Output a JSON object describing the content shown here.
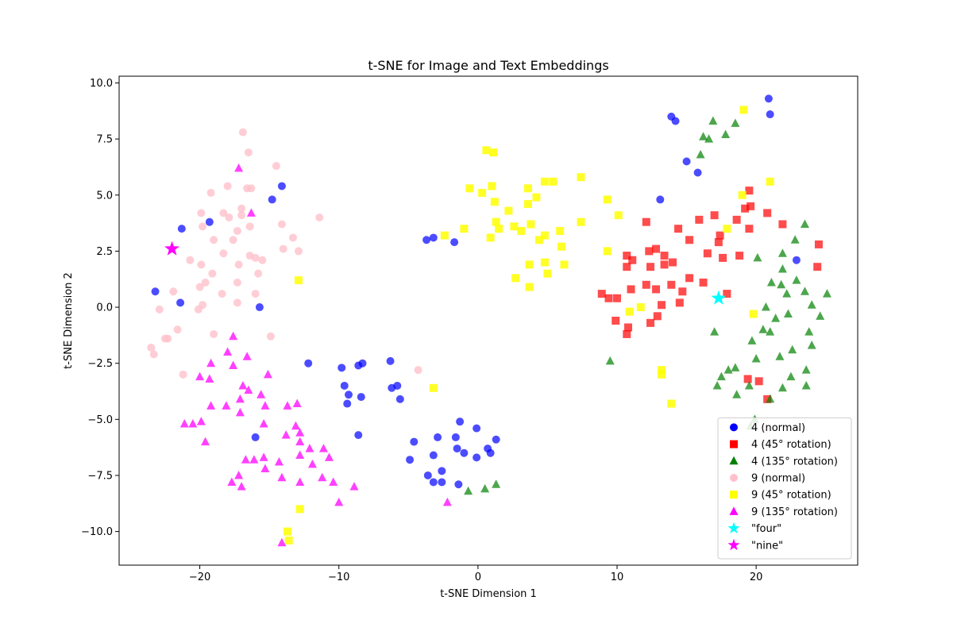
{
  "chart_data": {
    "type": "scatter",
    "title": "t-SNE for Image and Text Embeddings",
    "xlabel": "t-SNE Dimension 1",
    "ylabel": "t-SNE Dimension 2",
    "xlim": [
      -25.8,
      27.3
    ],
    "ylim": [
      -11.5,
      10.3
    ],
    "xticks": [
      -20,
      -10,
      0,
      10,
      20
    ],
    "xtick_labels": [
      "−20",
      "−10",
      "0",
      "10",
      "20"
    ],
    "yticks": [
      -10,
      -7.5,
      -5,
      -2.5,
      0,
      2.5,
      5,
      7.5,
      10
    ],
    "ytick_labels": [
      "−10.0",
      "−7.5",
      "−5.0",
      "−2.5",
      "0.0",
      "2.5",
      "5.0",
      "7.5",
      "10.0"
    ],
    "grid": false,
    "legend_position": "lower-right",
    "series": [
      {
        "name": "4 (normal)",
        "marker": "circle",
        "color": "#0000ff",
        "alpha": 0.7,
        "points": [
          [
            -21.3,
            3.5
          ],
          [
            -19.3,
            3.8
          ],
          [
            -14.8,
            4.8
          ],
          [
            -14.1,
            5.4
          ],
          [
            -23.2,
            0.7
          ],
          [
            -21.4,
            0.2
          ],
          [
            -15.7,
            0.0
          ],
          [
            -3.7,
            3.0
          ],
          [
            -3.2,
            3.1
          ],
          [
            -1.7,
            2.9
          ],
          [
            -12.2,
            -2.5
          ],
          [
            -9.8,
            -2.7
          ],
          [
            -8.6,
            -2.6
          ],
          [
            -8.3,
            -2.5
          ],
          [
            -6.3,
            -2.4
          ],
          [
            -9.6,
            -3.5
          ],
          [
            -9.3,
            -3.9
          ],
          [
            -8.4,
            -4.0
          ],
          [
            -6.2,
            -3.6
          ],
          [
            -5.8,
            -3.5
          ],
          [
            -5.6,
            -4.1
          ],
          [
            -9.4,
            -4.3
          ],
          [
            -8.6,
            -5.7
          ],
          [
            -16.0,
            -5.8
          ],
          [
            -4.6,
            -6.0
          ],
          [
            -2.9,
            -5.8
          ],
          [
            -1.6,
            -5.8
          ],
          [
            -1.3,
            -5.1
          ],
          [
            -0.1,
            -5.4
          ],
          [
            1.3,
            -5.9
          ],
          [
            -1.5,
            -6.3
          ],
          [
            -1.0,
            -6.5
          ],
          [
            -3.2,
            -6.6
          ],
          [
            0.7,
            -6.3
          ],
          [
            -0.1,
            -6.7
          ],
          [
            0.9,
            -6.5
          ],
          [
            -4.9,
            -6.8
          ],
          [
            -3.6,
            -7.5
          ],
          [
            -2.6,
            -7.3
          ],
          [
            -3.2,
            -7.8
          ],
          [
            -2.6,
            -7.8
          ],
          [
            -1.4,
            -7.9
          ],
          [
            13.9,
            8.5
          ],
          [
            14.2,
            8.3
          ],
          [
            15.0,
            6.5
          ],
          [
            15.8,
            6.0
          ],
          [
            20.9,
            9.3
          ],
          [
            21.0,
            8.6
          ],
          [
            13.1,
            4.8
          ],
          [
            22.9,
            2.1
          ]
        ]
      },
      {
        "name": "4 (45° rotation)",
        "marker": "square",
        "color": "#ff0000",
        "alpha": 0.7,
        "points": [
          [
            19.5,
            5.2
          ],
          [
            19.6,
            4.5
          ],
          [
            19.2,
            4.4
          ],
          [
            20.8,
            4.2
          ],
          [
            21.9,
            3.7
          ],
          [
            17.0,
            4.1
          ],
          [
            18.6,
            3.9
          ],
          [
            19.5,
            3.5
          ],
          [
            15.9,
            3.9
          ],
          [
            12.1,
            3.8
          ],
          [
            14.4,
            3.5
          ],
          [
            17.4,
            3.2
          ],
          [
            17.3,
            2.9
          ],
          [
            15.2,
            3.0
          ],
          [
            24.5,
            2.8
          ],
          [
            12.3,
            2.5
          ],
          [
            12.8,
            2.6
          ],
          [
            13.4,
            2.3
          ],
          [
            11.1,
            2.1
          ],
          [
            10.7,
            2.3
          ],
          [
            14.0,
            2.0
          ],
          [
            16.5,
            2.4
          ],
          [
            17.6,
            2.2
          ],
          [
            18.8,
            2.3
          ],
          [
            10.7,
            1.8
          ],
          [
            12.4,
            1.8
          ],
          [
            13.4,
            1.9
          ],
          [
            24.4,
            1.8
          ],
          [
            15.2,
            1.3
          ],
          [
            16.2,
            1.1
          ],
          [
            12.1,
            1.0
          ],
          [
            13.9,
            1.0
          ],
          [
            14.7,
            0.7
          ],
          [
            11.0,
            0.8
          ],
          [
            12.8,
            0.8
          ],
          [
            8.9,
            0.6
          ],
          [
            9.4,
            0.4
          ],
          [
            10.0,
            0.4
          ],
          [
            17.9,
            0.6
          ],
          [
            13.2,
            0.1
          ],
          [
            14.5,
            0.2
          ],
          [
            9.9,
            -0.6
          ],
          [
            12.9,
            -0.4
          ],
          [
            12.4,
            -0.7
          ],
          [
            10.8,
            -0.9
          ],
          [
            10.7,
            -1.2
          ],
          [
            19.4,
            -3.2
          ],
          [
            20.2,
            -3.3
          ],
          [
            20.8,
            -4.1
          ]
        ]
      },
      {
        "name": "4 (135° rotation)",
        "marker": "triangle",
        "color": "#008000",
        "alpha": 0.7,
        "points": [
          [
            16.9,
            8.3
          ],
          [
            18.5,
            8.2
          ],
          [
            17.8,
            7.7
          ],
          [
            16.2,
            7.6
          ],
          [
            16.6,
            7.5
          ],
          [
            16.0,
            6.8
          ],
          [
            23.5,
            3.7
          ],
          [
            22.8,
            3.0
          ],
          [
            21.9,
            2.4
          ],
          [
            20.1,
            2.2
          ],
          [
            21.9,
            1.7
          ],
          [
            22.9,
            1.2
          ],
          [
            21.1,
            1.1
          ],
          [
            21.8,
            1.0
          ],
          [
            22.2,
            0.6
          ],
          [
            23.5,
            0.7
          ],
          [
            25.1,
            0.6
          ],
          [
            24.0,
            0.1
          ],
          [
            24.6,
            -0.4
          ],
          [
            22.3,
            -0.3
          ],
          [
            21.4,
            -0.5
          ],
          [
            20.7,
            0.0
          ],
          [
            20.5,
            -1.0
          ],
          [
            21.0,
            -1.1
          ],
          [
            17.0,
            -1.1
          ],
          [
            23.8,
            -1.1
          ],
          [
            19.7,
            -1.5
          ],
          [
            24.0,
            -1.7
          ],
          [
            22.6,
            -1.9
          ],
          [
            20.0,
            -2.3
          ],
          [
            21.7,
            -2.2
          ],
          [
            9.5,
            -2.4
          ],
          [
            18.5,
            -2.7
          ],
          [
            18.0,
            -2.8
          ],
          [
            23.6,
            -2.8
          ],
          [
            17.5,
            -3.1
          ],
          [
            22.5,
            -3.1
          ],
          [
            17.2,
            -3.5
          ],
          [
            19.5,
            -3.5
          ],
          [
            21.9,
            -3.6
          ],
          [
            23.6,
            -3.5
          ],
          [
            18.6,
            -3.9
          ],
          [
            21.0,
            -4.1
          ],
          [
            19.9,
            -5.0
          ],
          [
            19.6,
            -5.3
          ],
          [
            -0.7,
            -8.2
          ],
          [
            0.5,
            -8.1
          ],
          [
            1.3,
            -7.9
          ]
        ]
      },
      {
        "name": "9 (normal)",
        "marker": "circle",
        "color": "#ffc0cb",
        "alpha": 0.8,
        "points": [
          [
            -16.9,
            7.8
          ],
          [
            -16.5,
            6.9
          ],
          [
            -14.5,
            6.3
          ],
          [
            -16.6,
            5.3
          ],
          [
            -16.3,
            5.3
          ],
          [
            -18.0,
            5.4
          ],
          [
            -19.2,
            5.1
          ],
          [
            -17.0,
            4.4
          ],
          [
            -19.9,
            4.2
          ],
          [
            -18.3,
            4.2
          ],
          [
            -17.0,
            4.1
          ],
          [
            -17.9,
            4.0
          ],
          [
            -11.4,
            4.0
          ],
          [
            -14.1,
            3.7
          ],
          [
            -19.8,
            3.6
          ],
          [
            -16.4,
            3.6
          ],
          [
            -17.3,
            3.4
          ],
          [
            -19.0,
            3.0
          ],
          [
            -17.6,
            3.0
          ],
          [
            -13.3,
            3.1
          ],
          [
            -14.0,
            2.6
          ],
          [
            -12.9,
            2.5
          ],
          [
            -18.3,
            2.4
          ],
          [
            -16.4,
            2.3
          ],
          [
            -20.7,
            2.1
          ],
          [
            -16.0,
            2.2
          ],
          [
            -15.5,
            2.1
          ],
          [
            -19.9,
            1.9
          ],
          [
            -17.2,
            1.9
          ],
          [
            -19.1,
            1.5
          ],
          [
            -15.8,
            1.5
          ],
          [
            -19.6,
            1.1
          ],
          [
            -17.3,
            1.1
          ],
          [
            -20.0,
            0.9
          ],
          [
            -21.9,
            0.7
          ],
          [
            -18.4,
            0.6
          ],
          [
            -16.0,
            0.6
          ],
          [
            -19.8,
            0.1
          ],
          [
            -17.3,
            0.2
          ],
          [
            -20.1,
            -0.1
          ],
          [
            -22.9,
            -0.1
          ],
          [
            -21.6,
            -1.0
          ],
          [
            -19.0,
            -1.2
          ],
          [
            -14.9,
            -1.3
          ],
          [
            -22.5,
            -1.4
          ],
          [
            -22.3,
            -1.4
          ],
          [
            -23.5,
            -1.8
          ],
          [
            -23.3,
            -2.1
          ],
          [
            -21.2,
            -3.0
          ],
          [
            -4.3,
            -2.8
          ]
        ]
      },
      {
        "name": "9 (45° rotation)",
        "marker": "square",
        "color": "#ffff00",
        "alpha": 0.85,
        "points": [
          [
            0.6,
            7.0
          ],
          [
            1.1,
            6.9
          ],
          [
            7.4,
            5.8
          ],
          [
            -0.6,
            5.3
          ],
          [
            0.3,
            5.1
          ],
          [
            1.0,
            5.4
          ],
          [
            3.6,
            5.3
          ],
          [
            4.8,
            5.6
          ],
          [
            5.4,
            5.6
          ],
          [
            1.2,
            4.7
          ],
          [
            2.2,
            4.3
          ],
          [
            3.6,
            4.6
          ],
          [
            4.2,
            4.9
          ],
          [
            9.3,
            4.8
          ],
          [
            10.1,
            4.1
          ],
          [
            7.4,
            3.8
          ],
          [
            1.3,
            3.8
          ],
          [
            1.5,
            3.5
          ],
          [
            2.6,
            3.6
          ],
          [
            3.8,
            3.7
          ],
          [
            3.1,
            3.4
          ],
          [
            5.9,
            3.4
          ],
          [
            -1.0,
            3.5
          ],
          [
            -2.4,
            3.2
          ],
          [
            4.4,
            3.0
          ],
          [
            4.8,
            3.2
          ],
          [
            0.9,
            3.1
          ],
          [
            6.0,
            2.7
          ],
          [
            9.3,
            2.5
          ],
          [
            3.7,
            1.9
          ],
          [
            4.8,
            2.0
          ],
          [
            6.2,
            1.9
          ],
          [
            2.7,
            1.3
          ],
          [
            5.0,
            1.5
          ],
          [
            3.7,
            0.9
          ],
          [
            -12.9,
            1.2
          ],
          [
            11.7,
            0.0
          ],
          [
            10.9,
            -0.2
          ],
          [
            13.2,
            -2.8
          ],
          [
            13.2,
            -3.0
          ],
          [
            -3.2,
            -3.6
          ],
          [
            13.9,
            -4.3
          ],
          [
            -12.8,
            -9.0
          ],
          [
            -13.7,
            -10.0
          ],
          [
            -13.6,
            -10.4
          ],
          [
            19.1,
            8.8
          ],
          [
            19.0,
            5.0
          ],
          [
            21.0,
            5.6
          ],
          [
            17.9,
            3.5
          ],
          [
            19.8,
            -0.3
          ]
        ]
      },
      {
        "name": "9 (135° rotation)",
        "marker": "triangle",
        "color": "#ff00ff",
        "alpha": 0.75,
        "points": [
          [
            -17.2,
            6.2
          ],
          [
            -16.3,
            4.2
          ],
          [
            -17.6,
            -1.3
          ],
          [
            -18.0,
            -2.0
          ],
          [
            -16.6,
            -2.2
          ],
          [
            -19.2,
            -2.5
          ],
          [
            -17.6,
            -2.6
          ],
          [
            -15.1,
            -3.0
          ],
          [
            -20.0,
            -3.1
          ],
          [
            -19.3,
            -3.2
          ],
          [
            -16.9,
            -3.5
          ],
          [
            -16.5,
            -3.7
          ],
          [
            -15.6,
            -3.9
          ],
          [
            -17.1,
            -4.1
          ],
          [
            -13.0,
            -4.3
          ],
          [
            -13.7,
            -4.4
          ],
          [
            -15.3,
            -4.4
          ],
          [
            -18.1,
            -4.4
          ],
          [
            -19.2,
            -4.4
          ],
          [
            -17.1,
            -4.7
          ],
          [
            -19.9,
            -5.1
          ],
          [
            -20.5,
            -5.2
          ],
          [
            -21.1,
            -5.2
          ],
          [
            -15.4,
            -5.2
          ],
          [
            -13.1,
            -5.3
          ],
          [
            -12.8,
            -5.6
          ],
          [
            -13.8,
            -5.7
          ],
          [
            -19.6,
            -6.0
          ],
          [
            -12.8,
            -6.0
          ],
          [
            -12.1,
            -6.3
          ],
          [
            -11.1,
            -6.3
          ],
          [
            -16.7,
            -6.8
          ],
          [
            -16.1,
            -6.8
          ],
          [
            -15.4,
            -6.7
          ],
          [
            -12.8,
            -6.6
          ],
          [
            -10.7,
            -6.7
          ],
          [
            -14.3,
            -6.9
          ],
          [
            -11.9,
            -7.0
          ],
          [
            -15.3,
            -7.2
          ],
          [
            -17.2,
            -7.5
          ],
          [
            -14.1,
            -7.6
          ],
          [
            -11.2,
            -7.6
          ],
          [
            -17.7,
            -7.8
          ],
          [
            -12.8,
            -7.8
          ],
          [
            -10.4,
            -7.8
          ],
          [
            -17.0,
            -8.0
          ],
          [
            -8.9,
            -8.0
          ],
          [
            -10.0,
            -8.7
          ],
          [
            -2.2,
            -8.7
          ],
          [
            -14.1,
            -10.5
          ]
        ]
      },
      {
        "name": "\"four\"",
        "marker": "star",
        "color": "#00ffff",
        "alpha": 1.0,
        "points": [
          [
            17.3,
            0.4
          ]
        ]
      },
      {
        "name": "\"nine\"",
        "marker": "star",
        "color": "#ff00ff",
        "alpha": 1.0,
        "points": [
          [
            -22.0,
            2.6
          ]
        ]
      }
    ]
  }
}
